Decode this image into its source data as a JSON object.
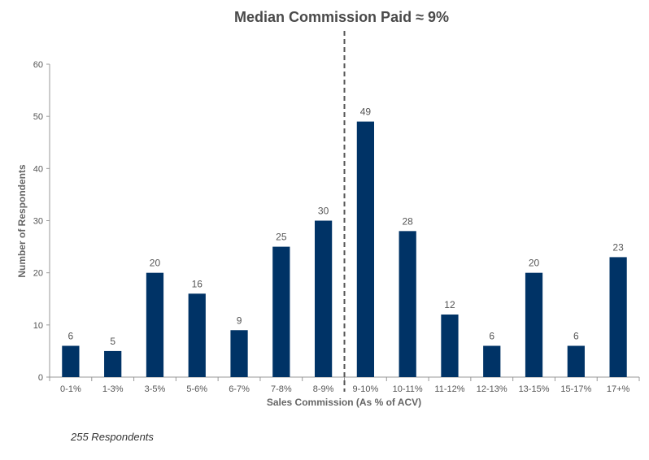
{
  "chart_data": {
    "type": "bar",
    "title": "Median Commission Paid ≈ 9%",
    "xlabel": "Sales Commission (As % of ACV)",
    "ylabel": "Number of Respondents",
    "categories": [
      "0-1%",
      "1-3%",
      "3-5%",
      "5-6%",
      "6-7%",
      "7-8%",
      "8-9%",
      "9-10%",
      "10-11%",
      "11-12%",
      "12-13%",
      "13-15%",
      "15-17%",
      "17+%"
    ],
    "values": [
      6,
      5,
      20,
      16,
      9,
      25,
      30,
      49,
      28,
      12,
      6,
      20,
      6,
      23
    ],
    "ylim": [
      0,
      60
    ],
    "yticks": [
      "0",
      "10",
      "20",
      "30",
      "40",
      "50",
      "60"
    ],
    "grid": false,
    "bar_color": "#003366",
    "median_marker_between": [
      "8-9%",
      "9-10%"
    ]
  },
  "footnote": "255 Respondents"
}
